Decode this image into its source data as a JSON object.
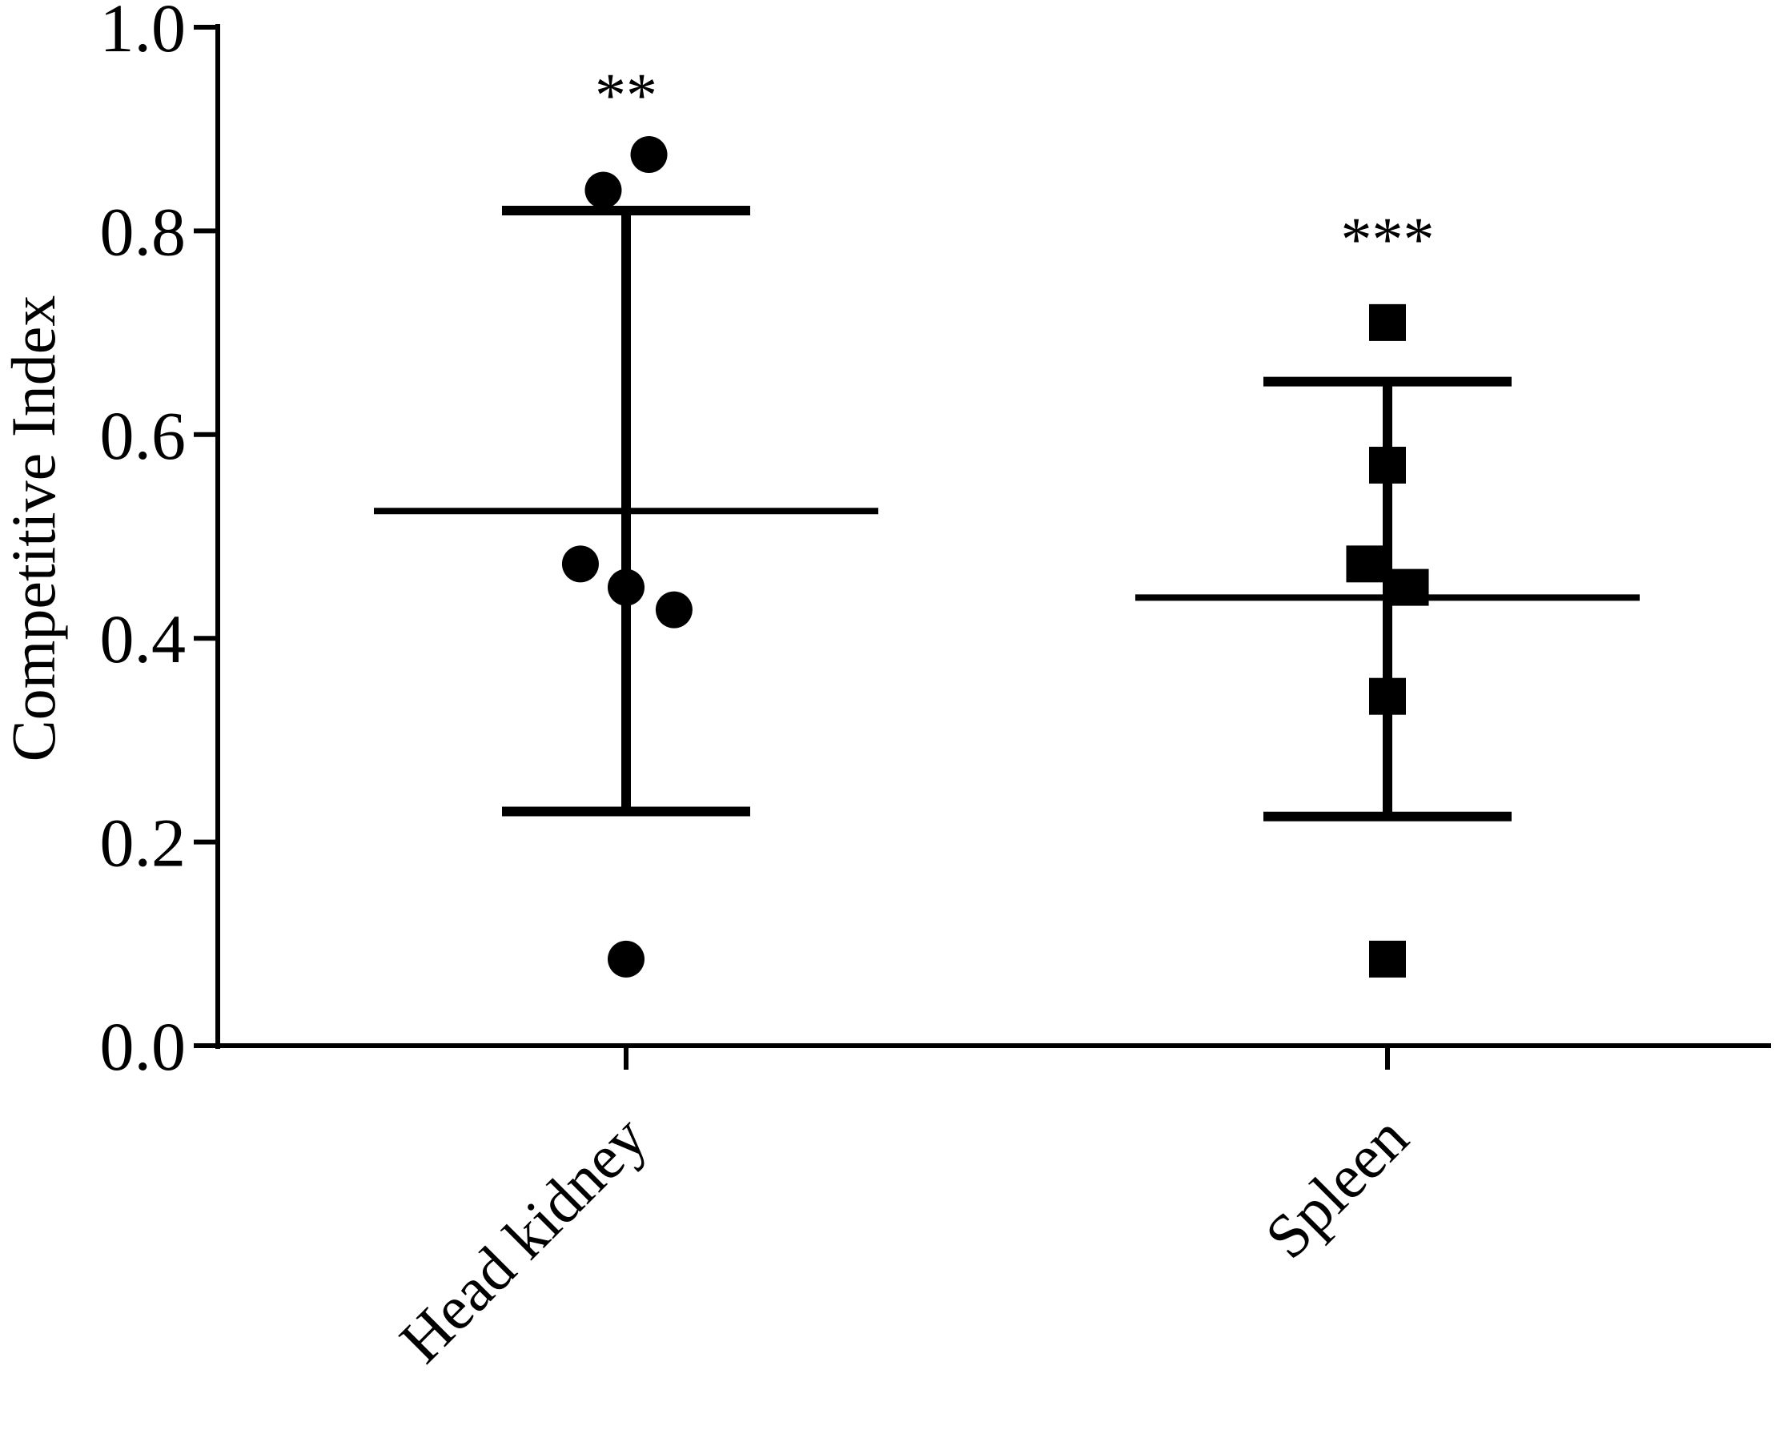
{
  "chart_data": {
    "type": "scatter",
    "title": "",
    "xlabel": "",
    "ylabel": "Competitive Index",
    "ylim": [
      0,
      1.0
    ],
    "yticks": [
      "0.0",
      "0.2",
      "0.4",
      "0.6",
      "0.8",
      "1.0"
    ],
    "ytick_values": [
      0,
      0.2,
      0.4,
      0.6,
      0.8,
      1.0
    ],
    "grid": false,
    "legend": "none",
    "categories": [
      "Head kidney",
      "Spleen"
    ],
    "groups": [
      {
        "category": "Head kidney",
        "marker": "circle",
        "color": "#000000",
        "points": [
          {
            "offset": -0.03,
            "y": 0.84
          },
          {
            "offset": 0.03,
            "y": 0.875
          },
          {
            "offset": -0.06,
            "y": 0.473
          },
          {
            "offset": 0.0,
            "y": 0.45
          },
          {
            "offset": 0.063,
            "y": 0.428
          },
          {
            "offset": 0.0,
            "y": 0.085
          }
        ],
        "mean": 0.525,
        "error_upper": 0.82,
        "error_lower": 0.23,
        "significance": "**"
      },
      {
        "category": "Spleen",
        "marker": "square",
        "color": "#000000",
        "points": [
          {
            "offset": 0.0,
            "y": 0.71
          },
          {
            "offset": 0.0,
            "y": 0.57
          },
          {
            "offset": -0.03,
            "y": 0.473
          },
          {
            "offset": 0.03,
            "y": 0.45
          },
          {
            "offset": 0.0,
            "y": 0.343
          },
          {
            "offset": 0.0,
            "y": 0.085
          }
        ],
        "mean": 0.44,
        "error_upper": 0.652,
        "error_lower": 0.225,
        "significance": "***"
      }
    ]
  }
}
